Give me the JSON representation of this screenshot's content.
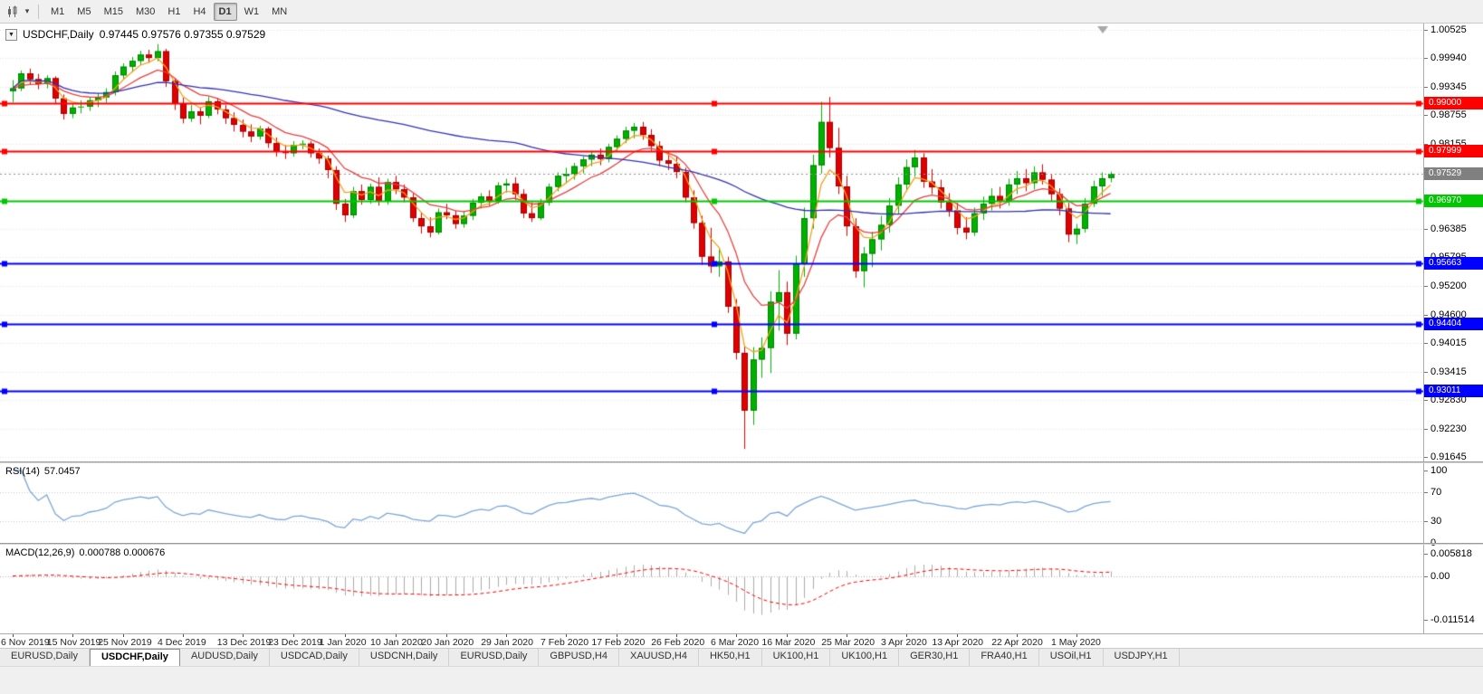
{
  "toolbar": {
    "timeframes": [
      "M1",
      "M5",
      "M15",
      "M30",
      "H1",
      "H4",
      "D1",
      "W1",
      "MN"
    ],
    "selected": "D1"
  },
  "tabs": {
    "items": [
      "EURUSD,Daily",
      "USDCHF,Daily",
      "AUDUSD,Daily",
      "USDCAD,Daily",
      "USDCNH,Daily",
      "EURUSD,Daily",
      "GBPUSD,H4",
      "XAUUSD,H4",
      "HK50,H1",
      "UK100,H1",
      "UK100,H1",
      "GER30,H1",
      "FRA40,H1",
      "USOil,H1",
      "USDJPY,H1"
    ],
    "selected_index": 1
  },
  "chart_data": [
    {
      "type": "candlestick",
      "panel": "main",
      "title": "USDCHF,Daily",
      "ohlc_text": "0.97445 0.97576 0.97355 0.97529",
      "ylim": [
        0.91645,
        1.00525
      ],
      "y_ticks": [
        "1.00525",
        "0.99940",
        "0.99345",
        "0.98755",
        "0.98155",
        "0.97565",
        "0.96970",
        "0.96385",
        "0.95795",
        "0.95200",
        "0.94600",
        "0.94015",
        "0.93415",
        "0.92830",
        "0.92230",
        "0.91645"
      ],
      "x_labels": [
        {
          "text": "6 Nov 2019",
          "i": 0
        },
        {
          "text": "15 Nov 2019",
          "i": 7
        },
        {
          "text": "25 Nov 2019",
          "i": 13
        },
        {
          "text": "4 Dec 2019",
          "i": 20
        },
        {
          "text": "13 Dec 2019",
          "i": 27
        },
        {
          "text": "23 Dec 2019",
          "i": 33
        },
        {
          "text": "1 Jan 2020",
          "i": 39
        },
        {
          "text": "10 Jan 2020",
          "i": 45
        },
        {
          "text": "20 Jan 2020",
          "i": 51
        },
        {
          "text": "29 Jan 2020",
          "i": 58
        },
        {
          "text": "7 Feb 2020",
          "i": 65
        },
        {
          "text": "17 Feb 2020",
          "i": 71
        },
        {
          "text": "26 Feb 2020",
          "i": 78
        },
        {
          "text": "6 Mar 2020",
          "i": 85
        },
        {
          "text": "16 Mar 2020",
          "i": 91
        },
        {
          "text": "25 Mar 2020",
          "i": 98
        },
        {
          "text": "3 Apr 2020",
          "i": 105
        },
        {
          "text": "13 Apr 2020",
          "i": 111
        },
        {
          "text": "22 Apr 2020",
          "i": 118
        },
        {
          "text": "1 May 2020",
          "i": 125
        }
      ],
      "candles": [
        [
          0.9925,
          0.9948,
          0.9902,
          0.9931
        ],
        [
          0.9931,
          0.9968,
          0.9925,
          0.9962
        ],
        [
          0.9962,
          0.9972,
          0.9938,
          0.995
        ],
        [
          0.995,
          0.9961,
          0.9929,
          0.994
        ],
        [
          0.994,
          0.9958,
          0.9931,
          0.9952
        ],
        [
          0.9952,
          0.9956,
          0.9898,
          0.991
        ],
        [
          0.991,
          0.9918,
          0.9866,
          0.9878
        ],
        [
          0.9878,
          0.9899,
          0.9869,
          0.9891
        ],
        [
          0.9891,
          0.9906,
          0.9879,
          0.9893
        ],
        [
          0.9893,
          0.9913,
          0.9884,
          0.9906
        ],
        [
          0.9906,
          0.9921,
          0.9892,
          0.9912
        ],
        [
          0.9912,
          0.9931,
          0.9901,
          0.9923
        ],
        [
          0.9923,
          0.9966,
          0.9916,
          0.9958
        ],
        [
          0.9958,
          0.9983,
          0.9949,
          0.9976
        ],
        [
          0.9976,
          0.9996,
          0.9964,
          0.9988
        ],
        [
          0.9988,
          1.0009,
          0.9979,
          1.0001
        ],
        [
          1.0001,
          1.0011,
          0.9984,
          0.9994
        ],
        [
          0.9994,
          1.0023,
          0.9987,
          1.0008
        ],
        [
          1.0008,
          1.0013,
          0.9934,
          0.9946
        ],
        [
          0.9946,
          0.9951,
          0.9886,
          0.9899
        ],
        [
          0.9899,
          0.9912,
          0.9858,
          0.9868
        ],
        [
          0.9868,
          0.9896,
          0.9861,
          0.9883
        ],
        [
          0.9883,
          0.9891,
          0.9856,
          0.9874
        ],
        [
          0.9874,
          0.9913,
          0.9869,
          0.9904
        ],
        [
          0.9904,
          0.9911,
          0.9877,
          0.9887
        ],
        [
          0.9887,
          0.9896,
          0.9857,
          0.9869
        ],
        [
          0.9869,
          0.9881,
          0.9841,
          0.9855
        ],
        [
          0.9855,
          0.9866,
          0.9829,
          0.9841
        ],
        [
          0.9841,
          0.9856,
          0.9819,
          0.9831
        ],
        [
          0.9831,
          0.9853,
          0.9824,
          0.9847
        ],
        [
          0.9847,
          0.9851,
          0.9807,
          0.9817
        ],
        [
          0.9817,
          0.9829,
          0.9789,
          0.9799
        ],
        [
          0.9799,
          0.9813,
          0.9784,
          0.9796
        ],
        [
          0.9796,
          0.9821,
          0.9789,
          0.9813
        ],
        [
          0.9813,
          0.9823,
          0.9804,
          0.9816
        ],
        [
          0.9816,
          0.9821,
          0.9787,
          0.9796
        ],
        [
          0.9796,
          0.9806,
          0.9774,
          0.9785
        ],
        [
          0.9785,
          0.9791,
          0.9744,
          0.9761
        ],
        [
          0.9761,
          0.9769,
          0.9678,
          0.9691
        ],
        [
          0.9691,
          0.9701,
          0.9653,
          0.9667
        ],
        [
          0.9667,
          0.9726,
          0.9661,
          0.9717
        ],
        [
          0.9717,
          0.9731,
          0.9689,
          0.9699
        ],
        [
          0.9699,
          0.9733,
          0.9691,
          0.9726
        ],
        [
          0.9726,
          0.9746,
          0.9687,
          0.9696
        ],
        [
          0.9696,
          0.9743,
          0.9689,
          0.9736
        ],
        [
          0.9736,
          0.9749,
          0.9711,
          0.9721
        ],
        [
          0.9721,
          0.9731,
          0.9694,
          0.9704
        ],
        [
          0.9704,
          0.9713,
          0.9653,
          0.9661
        ],
        [
          0.9661,
          0.9673,
          0.9629,
          0.9644
        ],
        [
          0.9644,
          0.9663,
          0.9621,
          0.9631
        ],
        [
          0.9631,
          0.9681,
          0.9627,
          0.9673
        ],
        [
          0.9673,
          0.9691,
          0.9659,
          0.9667
        ],
        [
          0.9667,
          0.9677,
          0.9639,
          0.9649
        ],
        [
          0.9649,
          0.9676,
          0.9641,
          0.9666
        ],
        [
          0.9666,
          0.9701,
          0.9657,
          0.9693
        ],
        [
          0.9693,
          0.9713,
          0.9681,
          0.9706
        ],
        [
          0.9706,
          0.9719,
          0.9687,
          0.9697
        ],
        [
          0.9697,
          0.9736,
          0.9691,
          0.9729
        ],
        [
          0.9729,
          0.9743,
          0.9714,
          0.9733
        ],
        [
          0.9733,
          0.9746,
          0.9699,
          0.9711
        ],
        [
          0.9711,
          0.9721,
          0.9661,
          0.9671
        ],
        [
          0.9671,
          0.9694,
          0.9653,
          0.9661
        ],
        [
          0.9661,
          0.9701,
          0.9657,
          0.9693
        ],
        [
          0.9693,
          0.9733,
          0.9687,
          0.9726
        ],
        [
          0.9726,
          0.9756,
          0.9717,
          0.9749
        ],
        [
          0.9749,
          0.9766,
          0.9734,
          0.9753
        ],
        [
          0.9753,
          0.9776,
          0.9741,
          0.9769
        ],
        [
          0.9769,
          0.9789,
          0.9754,
          0.9783
        ],
        [
          0.9783,
          0.9801,
          0.9769,
          0.9793
        ],
        [
          0.9793,
          0.9806,
          0.9771,
          0.9784
        ],
        [
          0.9784,
          0.9816,
          0.9777,
          0.9809
        ],
        [
          0.9809,
          0.9833,
          0.9799,
          0.9826
        ],
        [
          0.9826,
          0.9851,
          0.9817,
          0.9843
        ],
        [
          0.9843,
          0.9859,
          0.9827,
          0.9851
        ],
        [
          0.9851,
          0.9861,
          0.9824,
          0.9834
        ],
        [
          0.9834,
          0.9846,
          0.9801,
          0.9811
        ],
        [
          0.9811,
          0.9821,
          0.9769,
          0.9781
        ],
        [
          0.9781,
          0.9801,
          0.9761,
          0.9774
        ],
        [
          0.9774,
          0.9789,
          0.9744,
          0.9757
        ],
        [
          0.9757,
          0.9766,
          0.9694,
          0.9704
        ],
        [
          0.9704,
          0.9719,
          0.9639,
          0.9651
        ],
        [
          0.9651,
          0.9666,
          0.9564,
          0.9581
        ],
        [
          0.9581,
          0.9641,
          0.9547,
          0.9561
        ],
        [
          0.9561,
          0.9599,
          0.9539,
          0.9571
        ],
        [
          0.9571,
          0.9581,
          0.9464,
          0.9477
        ],
        [
          0.9477,
          0.9493,
          0.9367,
          0.9381
        ],
        [
          0.9381,
          0.9396,
          0.9181,
          0.9261
        ],
        [
          0.9261,
          0.9393,
          0.9231,
          0.9367
        ],
        [
          0.9367,
          0.9413,
          0.9329,
          0.9391
        ],
        [
          0.9391,
          0.9509,
          0.9339,
          0.9487
        ],
        [
          0.9487,
          0.9553,
          0.9427,
          0.9507
        ],
        [
          0.9507,
          0.9529,
          0.9397,
          0.9421
        ],
        [
          0.9421,
          0.9583,
          0.9409,
          0.9567
        ],
        [
          0.9567,
          0.9683,
          0.9539,
          0.9661
        ],
        [
          0.9661,
          0.9793,
          0.9639,
          0.9771
        ],
        [
          0.9771,
          0.9903,
          0.9754,
          0.9861
        ],
        [
          0.9861,
          0.9913,
          0.9787,
          0.9807
        ],
        [
          0.9807,
          0.9849,
          0.9711,
          0.9727
        ],
        [
          0.9727,
          0.9749,
          0.9624,
          0.9644
        ],
        [
          0.9644,
          0.9661,
          0.9537,
          0.9551
        ],
        [
          0.9551,
          0.9601,
          0.9517,
          0.9587
        ],
        [
          0.9587,
          0.9633,
          0.9559,
          0.9617
        ],
        [
          0.9617,
          0.9666,
          0.9594,
          0.9647
        ],
        [
          0.9647,
          0.9703,
          0.9631,
          0.9687
        ],
        [
          0.9687,
          0.9746,
          0.9669,
          0.9731
        ],
        [
          0.9731,
          0.9783,
          0.9717,
          0.9767
        ],
        [
          0.9767,
          0.9803,
          0.9747,
          0.9787
        ],
        [
          0.9787,
          0.9796,
          0.9724,
          0.9737
        ],
        [
          0.9737,
          0.9763,
          0.9711,
          0.9725
        ],
        [
          0.9725,
          0.9741,
          0.9681,
          0.9694
        ],
        [
          0.9694,
          0.9713,
          0.9664,
          0.9677
        ],
        [
          0.9677,
          0.9693,
          0.9627,
          0.9641
        ],
        [
          0.9641,
          0.9663,
          0.9617,
          0.9631
        ],
        [
          0.9631,
          0.9683,
          0.9624,
          0.9671
        ],
        [
          0.9671,
          0.9706,
          0.9657,
          0.9691
        ],
        [
          0.9691,
          0.9723,
          0.9677,
          0.9707
        ],
        [
          0.9707,
          0.9726,
          0.9681,
          0.9697
        ],
        [
          0.9697,
          0.9743,
          0.9687,
          0.9731
        ],
        [
          0.9731,
          0.9759,
          0.9711,
          0.9744
        ],
        [
          0.9744,
          0.9763,
          0.9717,
          0.9734
        ],
        [
          0.9734,
          0.9769,
          0.9721,
          0.9756
        ],
        [
          0.9756,
          0.9773,
          0.9731,
          0.9741
        ],
        [
          0.9741,
          0.9753,
          0.9697,
          0.9711
        ],
        [
          0.9711,
          0.9723,
          0.9667,
          0.9681
        ],
        [
          0.9681,
          0.9693,
          0.9611,
          0.9627
        ],
        [
          0.9627,
          0.9649,
          0.9607,
          0.9639
        ],
        [
          0.9639,
          0.9703,
          0.9631,
          0.9691
        ],
        [
          0.9691,
          0.9739,
          0.9684,
          0.9727
        ],
        [
          0.9727,
          0.9756,
          0.9707,
          0.9744
        ],
        [
          0.97445,
          0.97576,
          0.97355,
          0.97529
        ]
      ],
      "horizontal_lines": [
        {
          "price": 0.99,
          "label": "0.99000",
          "color": "#FF0000"
        },
        {
          "price": 0.97999,
          "label": "0.97999",
          "color": "#FF0000"
        },
        {
          "price": 0.9697,
          "label": "0.96970",
          "color": "#00C800"
        },
        {
          "price": 0.95663,
          "label": "0.95663",
          "color": "#0000FF"
        },
        {
          "price": 0.94404,
          "label": "0.94404",
          "color": "#0000FF"
        },
        {
          "price": 0.93011,
          "label": "0.93011",
          "color": "#0000FF"
        }
      ],
      "current_price": {
        "value": 0.97529,
        "label": "0.97529",
        "box_color": "#808080",
        "line_color": "#909090"
      },
      "overlays": [
        {
          "name": "ma-fast-orange",
          "method": "ema",
          "period": 4,
          "color": "#F5A21B"
        },
        {
          "name": "ma-medium-red",
          "method": "ema",
          "period": 10,
          "color": "#E84040"
        },
        {
          "name": "ma-slow-blue",
          "method": "sma",
          "period": 60,
          "color": "#3232B4"
        }
      ],
      "bull_color": "#00B200",
      "bull_edge": "#008000",
      "bear_color": "#E00000",
      "bear_edge": "#A00000",
      "grid_color": "#E3E3E3"
    },
    {
      "type": "line",
      "panel": "rsi",
      "label": "RSI(14)",
      "value": "57.0457",
      "period": 14,
      "range": [
        0,
        100
      ],
      "scale_labels": [
        {
          "text": "100",
          "value": 100
        },
        {
          "text": "70",
          "value": 70
        },
        {
          "text": "30",
          "value": 30
        },
        {
          "text": "0",
          "value": 0
        }
      ],
      "level_lines": [
        70,
        30
      ],
      "line_color": "#7BA7D7",
      "level_line_color": "#C8C8C8"
    },
    {
      "type": "macd",
      "panel": "macd",
      "label": "MACD(12,26,9)",
      "values": "0.000788 0.000676",
      "fast": 12,
      "slow": 26,
      "signal": 9,
      "scale_labels": [
        {
          "text": "0.005818",
          "value": 0.005818
        },
        {
          "text": "0.00",
          "value": 0
        },
        {
          "text": "-0.011514",
          "value": -0.011514
        }
      ],
      "histogram_color": "#ABABAB",
      "signal_color": "#FF0000",
      "zero_line_color": "#B4B4B4"
    }
  ]
}
